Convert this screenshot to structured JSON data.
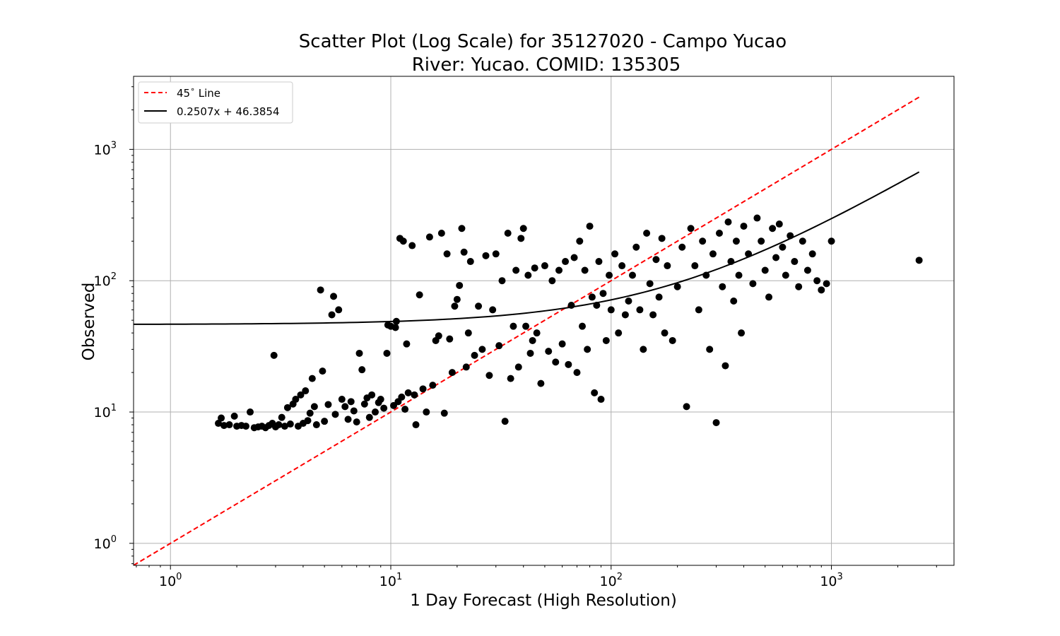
{
  "chart_data": {
    "type": "scatter",
    "title": "Scatter Plot (Log Scale) for 35127020 - Campo Yucao",
    "subtitle": "River: Yucao. COMID: 135305",
    "xlabel": "1 Day Forecast (High Resolution)",
    "ylabel": "Observed",
    "xscale": "log",
    "yscale": "log",
    "xlim": [
      0.68,
      3600
    ],
    "ylim": [
      0.68,
      3600
    ],
    "grid": true,
    "legend_position": "top-left",
    "x_ticks": [
      {
        "base": "10",
        "exp": "0"
      },
      {
        "base": "10",
        "exp": "1"
      },
      {
        "base": "10",
        "exp": "2"
      },
      {
        "base": "10",
        "exp": "3"
      }
    ],
    "y_ticks": [
      {
        "base": "10",
        "exp": "0"
      },
      {
        "base": "10",
        "exp": "1"
      },
      {
        "base": "10",
        "exp": "2"
      },
      {
        "base": "10",
        "exp": "3"
      }
    ],
    "legend": [
      {
        "label": "45",
        "degree": "∘",
        "label_tail": " Line",
        "color": "#ff0000",
        "style": "dashed"
      },
      {
        "label": "0.2507x + 46.3854",
        "color": "#000000",
        "style": "solid"
      }
    ],
    "lines": [
      {
        "name": "45° Line",
        "x": [
          0.68,
          2500
        ],
        "y": [
          0.68,
          2500
        ],
        "color": "#ff0000",
        "dash": true
      },
      {
        "name": "0.2507x + 46.3854",
        "slope": 0.2507,
        "intercept": 46.3854,
        "x_range": [
          0.68,
          2500
        ],
        "color": "#000000",
        "dash": false
      }
    ],
    "series": [
      {
        "color": "#000000",
        "points": [
          [
            1.65,
            8.2
          ],
          [
            1.7,
            9.0
          ],
          [
            1.75,
            7.9
          ],
          [
            1.85,
            8.0
          ],
          [
            1.95,
            9.3
          ],
          [
            2.0,
            7.8
          ],
          [
            2.1,
            7.9
          ],
          [
            2.2,
            7.8
          ],
          [
            2.3,
            10.0
          ],
          [
            2.4,
            7.6
          ],
          [
            2.5,
            7.7
          ],
          [
            2.6,
            7.8
          ],
          [
            2.7,
            7.6
          ],
          [
            2.8,
            7.9
          ],
          [
            2.9,
            8.2
          ],
          [
            2.95,
            27.0
          ],
          [
            3.0,
            7.7
          ],
          [
            3.1,
            8.0
          ],
          [
            3.2,
            9.1
          ],
          [
            3.3,
            7.8
          ],
          [
            3.4,
            10.8
          ],
          [
            3.5,
            8.1
          ],
          [
            3.6,
            11.5
          ],
          [
            3.7,
            12.5
          ],
          [
            3.8,
            7.8
          ],
          [
            3.9,
            13.5
          ],
          [
            4.0,
            8.2
          ],
          [
            4.1,
            14.5
          ],
          [
            4.2,
            8.6
          ],
          [
            4.3,
            9.8
          ],
          [
            4.4,
            18.0
          ],
          [
            4.5,
            11.0
          ],
          [
            4.6,
            8.0
          ],
          [
            4.8,
            85.0
          ],
          [
            4.9,
            20.5
          ],
          [
            5.0,
            8.5
          ],
          [
            5.2,
            11.4
          ],
          [
            5.4,
            55.0
          ],
          [
            5.5,
            76.0
          ],
          [
            5.6,
            9.6
          ],
          [
            5.8,
            60.0
          ],
          [
            6.0,
            12.5
          ],
          [
            6.2,
            11.0
          ],
          [
            6.4,
            8.8
          ],
          [
            6.6,
            12.0
          ],
          [
            6.8,
            10.2
          ],
          [
            7.0,
            8.4
          ],
          [
            7.2,
            28.0
          ],
          [
            7.4,
            21.0
          ],
          [
            7.6,
            11.5
          ],
          [
            7.8,
            12.8
          ],
          [
            8.0,
            9.1
          ],
          [
            8.2,
            13.5
          ],
          [
            8.5,
            10.0
          ],
          [
            8.8,
            11.8
          ],
          [
            9.0,
            12.5
          ],
          [
            9.3,
            10.7
          ],
          [
            9.6,
            28.0
          ],
          [
            9.7,
            46.0
          ],
          [
            10.0,
            45.0
          ],
          [
            10.3,
            11.2
          ],
          [
            10.5,
            44.0
          ],
          [
            10.6,
            49.0
          ],
          [
            10.8,
            12.0
          ],
          [
            11.0,
            210.0
          ],
          [
            11.2,
            13.0
          ],
          [
            11.4,
            200.0
          ],
          [
            11.6,
            10.5
          ],
          [
            11.8,
            33.0
          ],
          [
            12.0,
            14.0
          ],
          [
            12.5,
            185.0
          ],
          [
            12.8,
            13.5
          ],
          [
            13.0,
            8.0
          ],
          [
            13.5,
            78.0
          ],
          [
            14.0,
            15.0
          ],
          [
            14.5,
            10.0
          ],
          [
            15.0,
            215.0
          ],
          [
            15.5,
            16.0
          ],
          [
            16.0,
            35.0
          ],
          [
            16.5,
            38.0
          ],
          [
            17.0,
            230.0
          ],
          [
            17.5,
            9.8
          ],
          [
            18.0,
            160.0
          ],
          [
            18.5,
            36.0
          ],
          [
            19.0,
            20.0
          ],
          [
            19.5,
            64.0
          ],
          [
            20.0,
            72.0
          ],
          [
            20.5,
            92.0
          ],
          [
            21.0,
            250.0
          ],
          [
            21.5,
            165.0
          ],
          [
            22.0,
            22.0
          ],
          [
            22.5,
            40.0
          ],
          [
            23.0,
            140.0
          ],
          [
            24.0,
            27.0
          ],
          [
            25.0,
            64.0
          ],
          [
            26.0,
            30.0
          ],
          [
            27.0,
            155.0
          ],
          [
            28.0,
            19.0
          ],
          [
            29.0,
            60.0
          ],
          [
            30.0,
            160.0
          ],
          [
            31.0,
            32.0
          ],
          [
            32.0,
            100.0
          ],
          [
            33.0,
            8.5
          ],
          [
            34.0,
            230.0
          ],
          [
            35.0,
            18.0
          ],
          [
            36.0,
            45.0
          ],
          [
            37.0,
            120.0
          ],
          [
            38.0,
            22.0
          ],
          [
            39.0,
            210.0
          ],
          [
            40.0,
            250.0
          ],
          [
            41.0,
            45.0
          ],
          [
            42.0,
            110.0
          ],
          [
            43.0,
            28.0
          ],
          [
            44.0,
            35.0
          ],
          [
            45.0,
            125.0
          ],
          [
            46.0,
            40.0
          ],
          [
            48.0,
            16.5
          ],
          [
            50.0,
            130.0
          ],
          [
            52.0,
            29.0
          ],
          [
            54.0,
            100.0
          ],
          [
            56.0,
            24.0
          ],
          [
            58.0,
            120.0
          ],
          [
            60.0,
            33.0
          ],
          [
            62.0,
            140.0
          ],
          [
            64.0,
            23.0
          ],
          [
            66.0,
            65.0
          ],
          [
            68.0,
            150.0
          ],
          [
            70.0,
            20.0
          ],
          [
            72.0,
            200.0
          ],
          [
            74.0,
            45.0
          ],
          [
            76.0,
            120.0
          ],
          [
            78.0,
            30.0
          ],
          [
            80.0,
            260.0
          ],
          [
            82.0,
            75.0
          ],
          [
            84.0,
            14.0
          ],
          [
            86.0,
            65.0
          ],
          [
            88.0,
            140.0
          ],
          [
            90.0,
            12.5
          ],
          [
            92.0,
            80.0
          ],
          [
            95.0,
            35.0
          ],
          [
            98.0,
            110.0
          ],
          [
            100.0,
            60.0
          ],
          [
            104.0,
            160.0
          ],
          [
            108.0,
            40.0
          ],
          [
            112.0,
            130.0
          ],
          [
            116.0,
            55.0
          ],
          [
            120.0,
            70.0
          ],
          [
            125.0,
            110.0
          ],
          [
            130.0,
            180.0
          ],
          [
            135.0,
            60.0
          ],
          [
            140.0,
            30.0
          ],
          [
            145.0,
            230.0
          ],
          [
            150.0,
            95.0
          ],
          [
            155.0,
            55.0
          ],
          [
            160.0,
            145.0
          ],
          [
            165.0,
            75.0
          ],
          [
            170.0,
            210.0
          ],
          [
            175.0,
            40.0
          ],
          [
            180.0,
            130.0
          ],
          [
            190.0,
            35.0
          ],
          [
            200.0,
            90.0
          ],
          [
            210.0,
            180.0
          ],
          [
            220.0,
            11.0
          ],
          [
            230.0,
            250.0
          ],
          [
            240.0,
            130.0
          ],
          [
            250.0,
            60.0
          ],
          [
            260.0,
            200.0
          ],
          [
            270.0,
            110.0
          ],
          [
            280.0,
            30.0
          ],
          [
            290.0,
            160.0
          ],
          [
            300.0,
            8.3
          ],
          [
            310.0,
            230.0
          ],
          [
            320.0,
            90.0
          ],
          [
            330.0,
            22.5
          ],
          [
            340.0,
            280.0
          ],
          [
            350.0,
            140.0
          ],
          [
            360.0,
            70.0
          ],
          [
            370.0,
            200.0
          ],
          [
            380.0,
            110.0
          ],
          [
            390.0,
            40.0
          ],
          [
            400.0,
            260.0
          ],
          [
            420.0,
            160.0
          ],
          [
            440.0,
            95.0
          ],
          [
            460.0,
            300.0
          ],
          [
            480.0,
            200.0
          ],
          [
            500.0,
            120.0
          ],
          [
            520.0,
            75.0
          ],
          [
            540.0,
            250.0
          ],
          [
            560.0,
            150.0
          ],
          [
            580.0,
            270.0
          ],
          [
            600.0,
            180.0
          ],
          [
            620.0,
            110.0
          ],
          [
            650.0,
            220.0
          ],
          [
            680.0,
            140.0
          ],
          [
            710.0,
            90.0
          ],
          [
            740.0,
            200.0
          ],
          [
            780.0,
            120.0
          ],
          [
            820.0,
            160.0
          ],
          [
            860.0,
            100.0
          ],
          [
            900.0,
            85.0
          ],
          [
            950.0,
            95.0
          ],
          [
            1000.0,
            200.0
          ],
          [
            2500.0,
            143.0
          ]
        ]
      }
    ]
  }
}
